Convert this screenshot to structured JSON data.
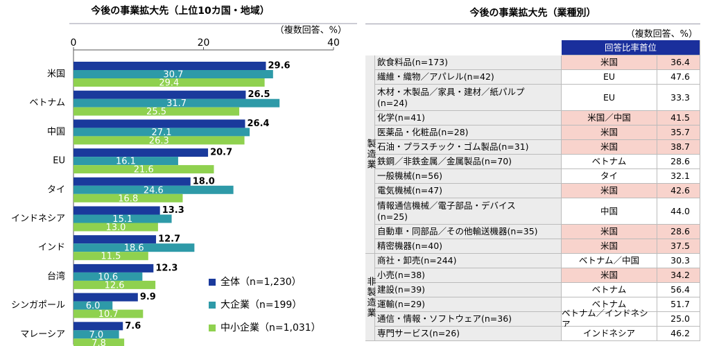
{
  "chart_data": {
    "type": "hbar",
    "title": "今後の事業拡大先（上位10カ国・地域）",
    "note": "（複数回答、%）",
    "categories": [
      "米国",
      "ベトナム",
      "中国",
      "EU",
      "タイ",
      "インドネシア",
      "インド",
      "台湾",
      "シンガポール",
      "マレーシア"
    ],
    "series": [
      {
        "name": "全体（n=1,230）",
        "color": "#1a3a9c",
        "values": [
          29.6,
          26.5,
          26.4,
          20.7,
          18.0,
          13.3,
          12.7,
          12.3,
          9.9,
          7.6
        ],
        "value_labels": [
          "29.6",
          "26.5",
          "26.4",
          "20.7",
          "18.0",
          "13.3",
          "12.7",
          "12.3",
          "9.9",
          "7.6"
        ]
      },
      {
        "name": "大企業（n=199）",
        "color": "#2e9aa8",
        "values": [
          30.7,
          31.7,
          27.1,
          16.1,
          24.6,
          15.1,
          18.6,
          10.6,
          6.0,
          7.0
        ],
        "value_labels": [
          "30.7",
          "31.7",
          "27.1",
          "16.1",
          "24.6",
          "15.1",
          "18.6",
          "10.6",
          "6.0",
          "7.0"
        ]
      },
      {
        "name": "中小企業（n=1,031）",
        "color": "#8fd14f",
        "values": [
          29.4,
          25.5,
          26.3,
          21.6,
          16.8,
          13.0,
          11.5,
          12.6,
          10.7,
          7.8
        ],
        "value_labels": [
          "29.4",
          "25.5",
          "26.3",
          "21.6",
          "16.8",
          "13.0",
          "11.5",
          "12.6",
          "10.7",
          "7.8"
        ]
      }
    ],
    "xlim": [
      0,
      40
    ],
    "xticks": [
      0,
      20,
      40
    ],
    "grid": false
  },
  "table": {
    "title": "今後の事業拡大先（業種別）",
    "note": "（複数回答、%）",
    "header": "回答比率首位",
    "highlight_color": "#f8d3cc",
    "groups": [
      {
        "label": "製造業",
        "rows": [
          [
            "飲食料品(n=173)",
            "米国",
            "36.4",
            true
          ],
          [
            "繊維・織物／アパレル(n=42)",
            "EU",
            "47.6",
            false
          ],
          [
            "木材・木製品／家具・建材／紙パルプ\n(n=24)",
            "EU",
            "33.3",
            false
          ],
          [
            "化学(n=41)",
            "米国／中国",
            "41.5",
            true
          ],
          [
            "医薬品・化粧品(n=28)",
            "米国",
            "35.7",
            true
          ],
          [
            "石油・プラスチック・ゴム製品(n=31)",
            "米国",
            "38.7",
            true
          ],
          [
            "鉄鋼／非鉄金属／金属製品(n=70)",
            "ベトナム",
            "28.6",
            false
          ],
          [
            "一般機械(n=56)",
            "タイ",
            "32.1",
            false
          ],
          [
            "電気機械(n=47)",
            "米国",
            "42.6",
            true
          ],
          [
            "情報通信機械／電子部品・デバイス\n(n=25)",
            "中国",
            "44.0",
            false
          ],
          [
            "自動車・同部品／その他輸送機器(n=35)",
            "米国",
            "28.6",
            true
          ],
          [
            "精密機器(n=40)",
            "米国",
            "37.5",
            true
          ]
        ]
      },
      {
        "label": "非製造業",
        "rows": [
          [
            "商社・卸売(n=244)",
            "ベトナム／中国",
            "30.3",
            false
          ],
          [
            "小売(n=38)",
            "米国",
            "34.2",
            true
          ],
          [
            "建設(n=39)",
            "ベトナム",
            "56.4",
            false
          ],
          [
            "運輸(n=29)",
            "ベトナム",
            "51.7",
            false
          ],
          [
            "通信・情報・ソフトウェア(n=36)",
            "ベトナム／インドネシア",
            "25.0",
            false
          ],
          [
            "専門サービス(n=26)",
            "インドネシア",
            "46.2",
            false
          ]
        ]
      }
    ]
  }
}
